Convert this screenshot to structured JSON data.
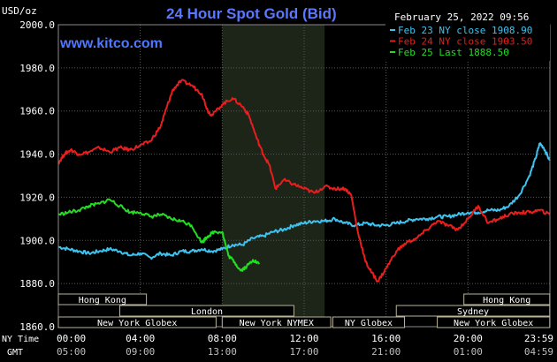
{
  "header": {
    "title": "24 Hour Spot Gold (Bid)",
    "website": "www.kitco.com",
    "date": "February 25, 2022 09:56"
  },
  "chart_data": {
    "type": "line",
    "unit_label": "USD/oz",
    "ylim": [
      1860,
      2000
    ],
    "y_ticks": [
      "2000.0",
      "1980.0",
      "1960.0",
      "1940.0",
      "1920.0",
      "1900.0",
      "1880.0",
      "1860.0"
    ],
    "x_time_prefix": [
      "NY Time",
      "GMT"
    ],
    "x_ticks_ny": [
      "00:00",
      "04:00",
      "08:00",
      "12:00",
      "16:00",
      "20:00",
      "23:59"
    ],
    "x_ticks_gmt": [
      "05:00",
      "09:00",
      "13:00",
      "17:00",
      "21:00",
      "01:00",
      "04:59"
    ],
    "grid": true,
    "legend_position": "top-right",
    "highlight_band_hours": [
      8,
      13
    ],
    "series": [
      {
        "name": "Feb 23 NY close 1908.90",
        "color": "#3ec3f0",
        "points": [
          [
            0,
            1897
          ],
          [
            0.5,
            1896
          ],
          [
            1,
            1895
          ],
          [
            1.5,
            1894
          ],
          [
            2,
            1895
          ],
          [
            2.5,
            1896
          ],
          [
            3,
            1895
          ],
          [
            3.5,
            1893
          ],
          [
            4,
            1894
          ],
          [
            4.5,
            1892
          ],
          [
            5,
            1894
          ],
          [
            5.5,
            1893
          ],
          [
            6,
            1895
          ],
          [
            6.5,
            1895
          ],
          [
            7,
            1896
          ],
          [
            7.5,
            1895
          ],
          [
            8,
            1896
          ],
          [
            8.5,
            1898
          ],
          [
            9,
            1898
          ],
          [
            9.5,
            1901
          ],
          [
            10,
            1902
          ],
          [
            10.5,
            1904
          ],
          [
            11,
            1905
          ],
          [
            11.5,
            1907
          ],
          [
            12,
            1908
          ],
          [
            12.5,
            1909
          ],
          [
            13,
            1909
          ],
          [
            13.5,
            1910
          ],
          [
            14,
            1908
          ],
          [
            14.5,
            1907
          ],
          [
            15,
            1908
          ],
          [
            15.5,
            1907
          ],
          [
            16,
            1907
          ],
          [
            16.5,
            1908
          ],
          [
            17,
            1909
          ],
          [
            17.5,
            1910
          ],
          [
            18,
            1910
          ],
          [
            18.5,
            1911
          ],
          [
            19,
            1911
          ],
          [
            19.5,
            1912
          ],
          [
            20,
            1913
          ],
          [
            20.5,
            1913
          ],
          [
            21,
            1914
          ],
          [
            21.5,
            1914
          ],
          [
            22,
            1916
          ],
          [
            22.5,
            1921
          ],
          [
            23,
            1930
          ],
          [
            23.3,
            1938
          ],
          [
            23.5,
            1945
          ],
          [
            23.7,
            1943
          ],
          [
            23.99,
            1937
          ]
        ]
      },
      {
        "name": "Feb 24 NY close 1903.50",
        "color": "#e81e1e",
        "points": [
          [
            0,
            1936
          ],
          [
            0.3,
            1940
          ],
          [
            0.6,
            1942
          ],
          [
            1,
            1940
          ],
          [
            1.5,
            1941
          ],
          [
            2,
            1943
          ],
          [
            2.5,
            1941
          ],
          [
            3,
            1943
          ],
          [
            3.5,
            1942
          ],
          [
            4,
            1944
          ],
          [
            4.5,
            1946
          ],
          [
            5,
            1953
          ],
          [
            5.3,
            1962
          ],
          [
            5.6,
            1970
          ],
          [
            6,
            1974
          ],
          [
            6.5,
            1972
          ],
          [
            7,
            1968
          ],
          [
            7.3,
            1960
          ],
          [
            7.5,
            1958
          ],
          [
            8,
            1963
          ],
          [
            8.5,
            1966
          ],
          [
            9,
            1962
          ],
          [
            9.3,
            1958
          ],
          [
            9.7,
            1947
          ],
          [
            10,
            1940
          ],
          [
            10.3,
            1935
          ],
          [
            10.6,
            1924
          ],
          [
            11,
            1928
          ],
          [
            11.5,
            1926
          ],
          [
            12,
            1924
          ],
          [
            12.5,
            1922
          ],
          [
            13,
            1925
          ],
          [
            13.5,
            1924
          ],
          [
            14,
            1924
          ],
          [
            14.3,
            1921
          ],
          [
            14.6,
            1905
          ],
          [
            15,
            1890
          ],
          [
            15.3,
            1885
          ],
          [
            15.6,
            1881
          ],
          [
            16,
            1887
          ],
          [
            16.5,
            1895
          ],
          [
            17,
            1899
          ],
          [
            17.5,
            1901
          ],
          [
            18,
            1905
          ],
          [
            18.5,
            1909
          ],
          [
            19,
            1907
          ],
          [
            19.5,
            1905
          ],
          [
            20,
            1910
          ],
          [
            20.5,
            1916
          ],
          [
            21,
            1908
          ],
          [
            21.5,
            1910
          ],
          [
            22,
            1912
          ],
          [
            22.5,
            1913
          ],
          [
            23,
            1913
          ],
          [
            23.5,
            1914
          ],
          [
            23.99,
            1912
          ]
        ]
      },
      {
        "name": "Feb 25 Last 1888.50",
        "color": "#22dd22",
        "points": [
          [
            0,
            1912
          ],
          [
            0.5,
            1913
          ],
          [
            1,
            1914
          ],
          [
            1.5,
            1916
          ],
          [
            2,
            1917
          ],
          [
            2.5,
            1919
          ],
          [
            3,
            1916
          ],
          [
            3.5,
            1913
          ],
          [
            4,
            1913
          ],
          [
            4.5,
            1911
          ],
          [
            5,
            1912
          ],
          [
            5.5,
            1910
          ],
          [
            6,
            1909
          ],
          [
            6.5,
            1907
          ],
          [
            7,
            1899
          ],
          [
            7.3,
            1902
          ],
          [
            7.6,
            1904
          ],
          [
            8,
            1904
          ],
          [
            8.3,
            1893
          ],
          [
            8.6,
            1890
          ],
          [
            8.9,
            1886
          ],
          [
            9.2,
            1888
          ],
          [
            9.5,
            1891
          ],
          [
            9.8,
            1889
          ]
        ]
      }
    ],
    "sessions": [
      {
        "label": "Hong Kong",
        "start": 0,
        "end": 4.3,
        "row": 0
      },
      {
        "label": "London",
        "start": 3,
        "end": 11.5,
        "row": 1
      },
      {
        "label": "New York Globex",
        "start": 0,
        "end": 7.7,
        "row": 2
      },
      {
        "label": "New York NYMEX",
        "start": 8,
        "end": 13.3,
        "row": 2
      },
      {
        "label": "NY Globex",
        "start": 13.4,
        "end": 16.9,
        "row": 2
      },
      {
        "label": "Hong Kong",
        "start": 19.8,
        "end": 23.99,
        "row": 0
      },
      {
        "label": "Sydney",
        "start": 16.5,
        "end": 23.99,
        "row": 1
      },
      {
        "label": "New York Globex",
        "start": 18.5,
        "end": 23.99,
        "row": 2
      }
    ]
  }
}
